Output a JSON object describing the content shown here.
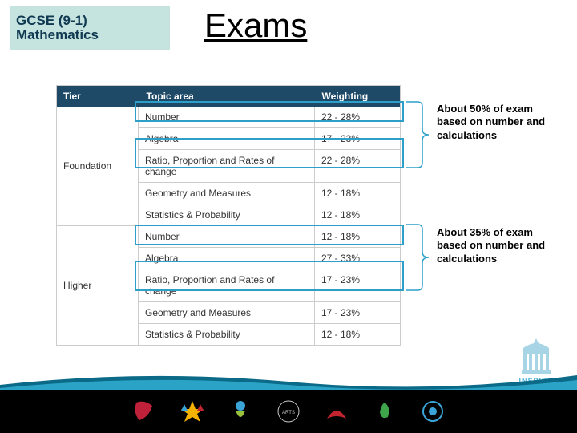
{
  "badge": {
    "line1": "GCSE (9-1)",
    "line2": "Mathematics",
    "bg": "#c5e3df",
    "text_color": "#103a52"
  },
  "title": "Exams",
  "colors": {
    "header_bg": "#1e4a68",
    "header_text": "#ffffff",
    "border": "#cccccc",
    "highlight": "#2d9fc9",
    "wave_fg": "#2aa3c7",
    "wave_bg": "#0b6a87"
  },
  "table": {
    "header": {
      "tier": "Tier",
      "topic": "Topic area",
      "weight": "Weighting"
    },
    "sections": [
      {
        "tier": "Foundation",
        "rows": [
          {
            "topic": "Number",
            "weight": "22 - 28%"
          },
          {
            "topic": "Algebra",
            "weight": "17 - 23%"
          },
          {
            "topic": "Ratio, Proportion and Rates of change",
            "weight": "22 - 28%"
          },
          {
            "topic": "Geometry and Measures",
            "weight": "12 - 18%"
          },
          {
            "topic": "Statistics & Probability",
            "weight": "12 - 18%"
          }
        ]
      },
      {
        "tier": "Higher",
        "rows": [
          {
            "topic": "Number",
            "weight": "12 - 18%"
          },
          {
            "topic": "Algebra",
            "weight": "27 - 33%"
          },
          {
            "topic": "Ratio, Proportion and Rates of change",
            "weight": "17 - 23%"
          },
          {
            "topic": "Geometry and Measures",
            "weight": "17 - 23%"
          },
          {
            "topic": "Statistics & Probability",
            "weight": "12 - 18%"
          }
        ]
      }
    ]
  },
  "notes": {
    "n1": "About 50% of exam based on number and calculations",
    "n2": "About 35% of exam based on number and calculations"
  },
  "inspire_label": "INSPIRE",
  "footer_logos": [
    {
      "name": "logo-1",
      "bg": "#000000",
      "fg": "#c0213a"
    },
    {
      "name": "logo-ssat",
      "bg": "#000000",
      "fg": "#ffffff"
    },
    {
      "name": "logo-healthy",
      "bg": "#000000",
      "fg": "#9ac13a"
    },
    {
      "name": "logo-arts",
      "bg": "#000000",
      "fg": "#c9c9c9"
    },
    {
      "name": "logo-sport",
      "bg": "#000000",
      "fg": "#c2242f"
    },
    {
      "name": "logo-eco",
      "bg": "#000000",
      "fg": "#3fa54a"
    },
    {
      "name": "logo-7",
      "bg": "#000000",
      "fg": "#3aa4d8"
    }
  ]
}
